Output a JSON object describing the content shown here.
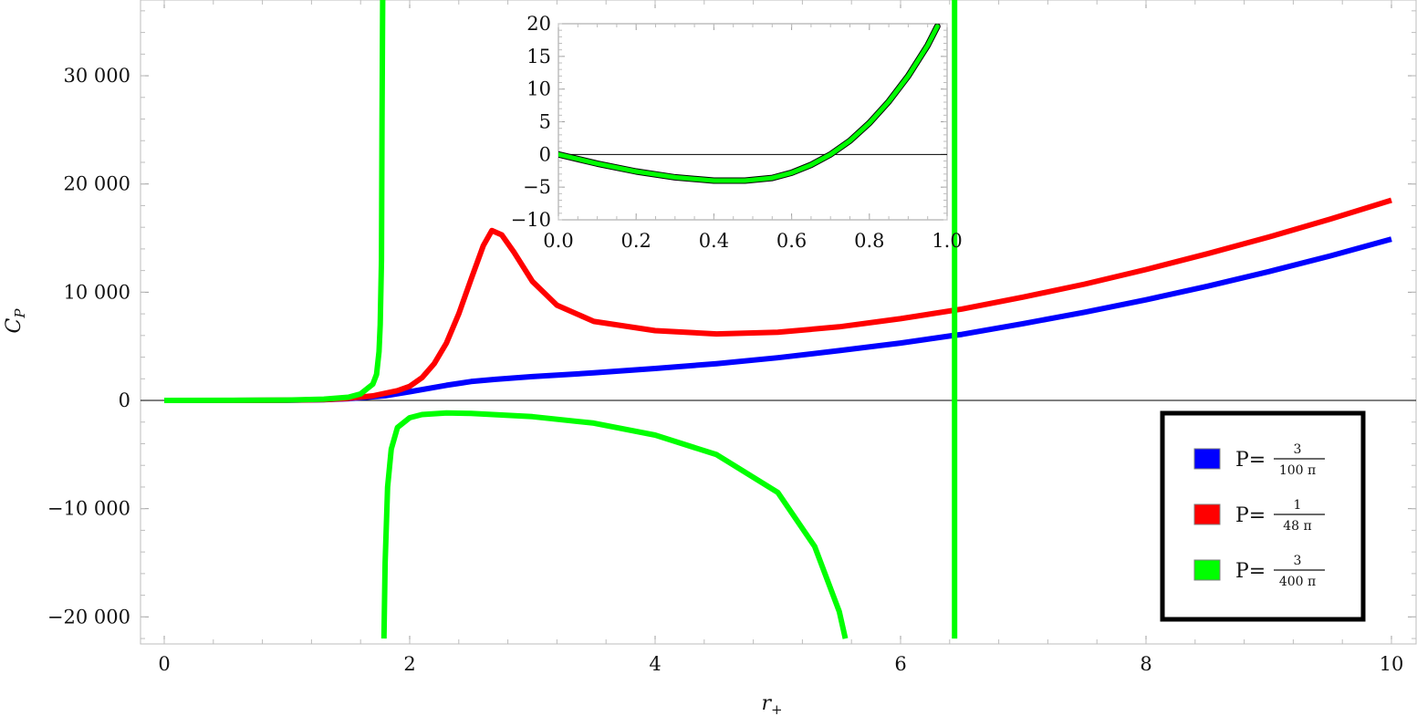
{
  "chart_data": [
    {
      "type": "line",
      "title": "",
      "xlabel": "r+",
      "ylabel": "CP",
      "xlim": [
        0,
        10
      ],
      "ylim": [
        -22500,
        37000
      ],
      "x_ticks": [
        0,
        2,
        4,
        6,
        8,
        10
      ],
      "x_tick_labels": [
        "0",
        "2",
        "4",
        "6",
        "8",
        "10"
      ],
      "y_ticks": [
        -20000,
        -10000,
        0,
        10000,
        20000,
        30000
      ],
      "y_tick_labels": [
        "−20 000",
        "−10 000",
        "0",
        "10 000",
        "20 000",
        "30 000"
      ],
      "grid": false,
      "zero_line": true,
      "legend_position": "bottom-right",
      "series": [
        {
          "name": "P=3/(100π)",
          "legend_prefix": "P=",
          "legend_num": "3",
          "legend_den": "100 π",
          "color": "#0000ff",
          "segments": [
            [
              [
                0,
                0
              ],
              [
                0.5,
                0
              ],
              [
                1.0,
                10
              ],
              [
                1.3,
                60
              ],
              [
                1.5,
                160
              ],
              [
                1.8,
                430
              ],
              [
                2.0,
                800
              ],
              [
                2.3,
                1400
              ],
              [
                2.5,
                1750
              ],
              [
                2.7,
                1950
              ],
              [
                3.0,
                2200
              ],
              [
                3.5,
                2550
              ],
              [
                4.0,
                2950
              ],
              [
                4.5,
                3400
              ],
              [
                5.0,
                3950
              ],
              [
                5.5,
                4600
              ],
              [
                6.0,
                5300
              ],
              [
                6.4,
                5950
              ],
              [
                6.5,
                6100
              ],
              [
                7.0,
                7100
              ],
              [
                7.5,
                8150
              ],
              [
                8.0,
                9300
              ],
              [
                8.5,
                10550
              ],
              [
                9.0,
                11900
              ],
              [
                9.5,
                13350
              ],
              [
                10.0,
                14900
              ]
            ]
          ]
        },
        {
          "name": "P=1/(48π)",
          "legend_prefix": "P=",
          "legend_num": "1",
          "legend_den": "48 π",
          "color": "#ff0000",
          "segments": [
            [
              [
                0,
                0
              ],
              [
                0.5,
                0
              ],
              [
                1.0,
                15
              ],
              [
                1.3,
                80
              ],
              [
                1.5,
                200
              ],
              [
                1.7,
                420
              ],
              [
                1.9,
                900
              ],
              [
                2.0,
                1300
              ],
              [
                2.1,
                2100
              ],
              [
                2.2,
                3400
              ],
              [
                2.3,
                5300
              ],
              [
                2.4,
                8000
              ],
              [
                2.5,
                11200
              ],
              [
                2.6,
                14300
              ],
              [
                2.67,
                15700
              ],
              [
                2.75,
                15300
              ],
              [
                2.85,
                13700
              ],
              [
                3.0,
                11000
              ],
              [
                3.2,
                8800
              ],
              [
                3.5,
                7300
              ],
              [
                4.0,
                6450
              ],
              [
                4.5,
                6150
              ],
              [
                5.0,
                6300
              ],
              [
                5.5,
                6800
              ],
              [
                6.0,
                7550
              ],
              [
                6.5,
                8450
              ],
              [
                7.0,
                9550
              ],
              [
                7.5,
                10750
              ],
              [
                8.0,
                12100
              ],
              [
                8.5,
                13550
              ],
              [
                9.0,
                15100
              ],
              [
                9.5,
                16750
              ],
              [
                10.0,
                18500
              ]
            ]
          ]
        },
        {
          "name": "P=3/(400π)",
          "legend_prefix": "P=",
          "legend_num": "3",
          "legend_den": "400 π",
          "color": "#00ff00",
          "segments": [
            [
              [
                0,
                0
              ],
              [
                0.5,
                10
              ],
              [
                1.0,
                40
              ],
              [
                1.3,
                120
              ],
              [
                1.5,
                300
              ],
              [
                1.6,
                600
              ],
              [
                1.7,
                1500
              ],
              [
                1.73,
                2400
              ],
              [
                1.75,
                4500
              ],
              [
                1.76,
                7000
              ],
              [
                1.77,
                13000
              ],
              [
                1.775,
                26000
              ],
              [
                1.78,
                37000
              ]
            ],
            [
              [
                1.79,
                -22000
              ],
              [
                1.8,
                -15000
              ],
              [
                1.82,
                -8000
              ],
              [
                1.85,
                -4500
              ],
              [
                1.9,
                -2500
              ],
              [
                2.0,
                -1600
              ],
              [
                2.1,
                -1300
              ],
              [
                2.3,
                -1150
              ],
              [
                2.5,
                -1200
              ],
              [
                3.0,
                -1500
              ],
              [
                3.5,
                -2100
              ],
              [
                4.0,
                -3200
              ],
              [
                4.5,
                -5000
              ],
              [
                5.0,
                -8500
              ],
              [
                5.3,
                -13500
              ],
              [
                5.5,
                -19500
              ],
              [
                5.55,
                -22000
              ]
            ],
            [
              [
                6.44,
                -22000
              ],
              [
                6.44,
                37000
              ]
            ]
          ]
        }
      ]
    },
    {
      "type": "line",
      "title": "inset",
      "xlabel": "",
      "ylabel": "",
      "xlim": [
        0,
        1
      ],
      "ylim": [
        -10,
        20
      ],
      "x_ticks": [
        0,
        0.2,
        0.4,
        0.6,
        0.8,
        1.0
      ],
      "x_tick_labels": [
        "0.0",
        "0.2",
        "0.4",
        "0.6",
        "0.8",
        "1.0"
      ],
      "y_ticks": [
        -10,
        -5,
        0,
        5,
        10,
        15,
        20
      ],
      "y_tick_labels": [
        "−10",
        "−5",
        "0",
        "5",
        "10",
        "15",
        "20"
      ],
      "grid": false,
      "zero_line": true,
      "series": [
        {
          "name": "",
          "color": "#000000",
          "points": [
            [
              0,
              0
            ],
            [
              0.1,
              -1.4
            ],
            [
              0.2,
              -2.6
            ],
            [
              0.3,
              -3.5
            ],
            [
              0.4,
              -4.0
            ],
            [
              0.48,
              -4.0
            ],
            [
              0.55,
              -3.6
            ],
            [
              0.6,
              -2.8
            ],
            [
              0.65,
              -1.6
            ],
            [
              0.7,
              0
            ],
            [
              0.75,
              2.1
            ],
            [
              0.8,
              4.8
            ],
            [
              0.85,
              8.1
            ],
            [
              0.9,
              12.0
            ],
            [
              0.95,
              16.7
            ],
            [
              0.975,
              19.6
            ]
          ]
        },
        {
          "name": "",
          "color": "#00ff00",
          "points": [
            [
              0,
              0
            ],
            [
              0.1,
              -1.4
            ],
            [
              0.2,
              -2.6
            ],
            [
              0.3,
              -3.5
            ],
            [
              0.4,
              -4.0
            ],
            [
              0.48,
              -4.0
            ],
            [
              0.55,
              -3.6
            ],
            [
              0.6,
              -2.8
            ],
            [
              0.65,
              -1.6
            ],
            [
              0.7,
              0
            ],
            [
              0.75,
              2.1
            ],
            [
              0.8,
              4.8
            ],
            [
              0.85,
              8.1
            ],
            [
              0.9,
              12.0
            ],
            [
              0.95,
              16.7
            ],
            [
              0.975,
              19.6
            ]
          ]
        }
      ]
    }
  ]
}
